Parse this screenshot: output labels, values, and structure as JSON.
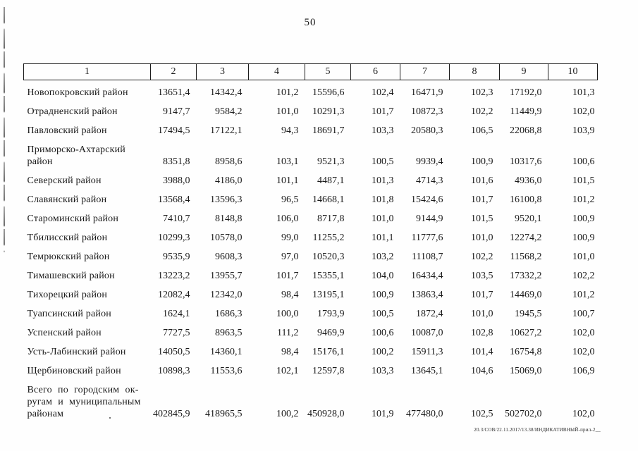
{
  "page": {
    "number": "50",
    "footer_note": "20.3/СОВ/22.11.2017/13.38/ИНДИКАТИВНЫЙ-прил-2__"
  },
  "table": {
    "column_headers": [
      "1",
      "2",
      "3",
      "4",
      "5",
      "6",
      "7",
      "8",
      "9",
      "10"
    ],
    "rows": [
      {
        "name": "Новопокровский район",
        "values": [
          "13651,4",
          "14342,4",
          "101,2",
          "15596,6",
          "102,4",
          "16471,9",
          "102,3",
          "17192,0",
          "101,3"
        ]
      },
      {
        "name": "Отрадненский район",
        "values": [
          "9147,7",
          "9584,2",
          "101,0",
          "10291,3",
          "101,7",
          "10872,3",
          "102,2",
          "11449,9",
          "102,0"
        ]
      },
      {
        "name": "Павловский район",
        "values": [
          "17494,5",
          "17122,1",
          "94,3",
          "18691,7",
          "103,3",
          "20580,3",
          "106,5",
          "22068,8",
          "103,9"
        ]
      },
      {
        "name": "Приморско-Ахтарский\nрайон",
        "values": [
          "8351,8",
          "8958,6",
          "103,1",
          "9521,3",
          "100,5",
          "9939,4",
          "100,9",
          "10317,6",
          "100,6"
        ]
      },
      {
        "name": "Северский район",
        "values": [
          "3988,0",
          "4186,0",
          "101,1",
          "4487,1",
          "101,3",
          "4714,3",
          "101,6",
          "4936,0",
          "101,5"
        ]
      },
      {
        "name": "Славянский район",
        "values": [
          "13568,4",
          "13596,3",
          "96,5",
          "14668,1",
          "101,8",
          "15424,6",
          "101,7",
          "16100,8",
          "101,2"
        ]
      },
      {
        "name": "Староминский район",
        "values": [
          "7410,7",
          "8148,8",
          "106,0",
          "8717,8",
          "101,0",
          "9144,9",
          "101,5",
          "9520,1",
          "100,9"
        ]
      },
      {
        "name": "Тбилисский район",
        "values": [
          "10299,3",
          "10578,0",
          "99,0",
          "11255,2",
          "101,1",
          "11777,6",
          "101,0",
          "12274,2",
          "100,9"
        ]
      },
      {
        "name": "Темрюкский район",
        "values": [
          "9535,9",
          "9608,3",
          "97,0",
          "10520,3",
          "103,2",
          "11108,7",
          "102,2",
          "11568,2",
          "101,0"
        ]
      },
      {
        "name": "Тимашевский район",
        "values": [
          "13223,2",
          "13955,7",
          "101,7",
          "15355,1",
          "104,0",
          "16434,4",
          "103,5",
          "17332,2",
          "102,2"
        ]
      },
      {
        "name": "Тихорецкий район",
        "values": [
          "12082,4",
          "12342,0",
          "98,4",
          "13195,1",
          "100,9",
          "13863,4",
          "101,7",
          "14469,0",
          "101,2"
        ]
      },
      {
        "name": "Туапсинский район",
        "values": [
          "1624,1",
          "1686,3",
          "100,0",
          "1793,9",
          "100,5",
          "1872,4",
          "101,0",
          "1945,5",
          "100,7"
        ]
      },
      {
        "name": "Успенский район",
        "values": [
          "7727,5",
          "8963,5",
          "111,2",
          "9469,9",
          "100,6",
          "10087,0",
          "102,8",
          "10627,2",
          "102,0"
        ]
      },
      {
        "name": "Усть-Лабинский район",
        "values": [
          "14050,5",
          "14360,1",
          "98,4",
          "15176,1",
          "100,2",
          "15911,3",
          "101,4",
          "16754,8",
          "102,0"
        ]
      },
      {
        "name": "Щербиновский район",
        "values": [
          "10898,3",
          "11553,6",
          "102,1",
          "12597,8",
          "103,3",
          "13645,1",
          "104,6",
          "15069,0",
          "106,9"
        ]
      },
      {
        "name": "Всего по городским ок-\nругам и муниципальным\nрайонам",
        "values": [
          "402845,9",
          "418965,5",
          "100,2",
          "450928,0",
          "101,9",
          "477480,0",
          "102,5",
          "502702,0",
          "102,0"
        ]
      }
    ]
  }
}
